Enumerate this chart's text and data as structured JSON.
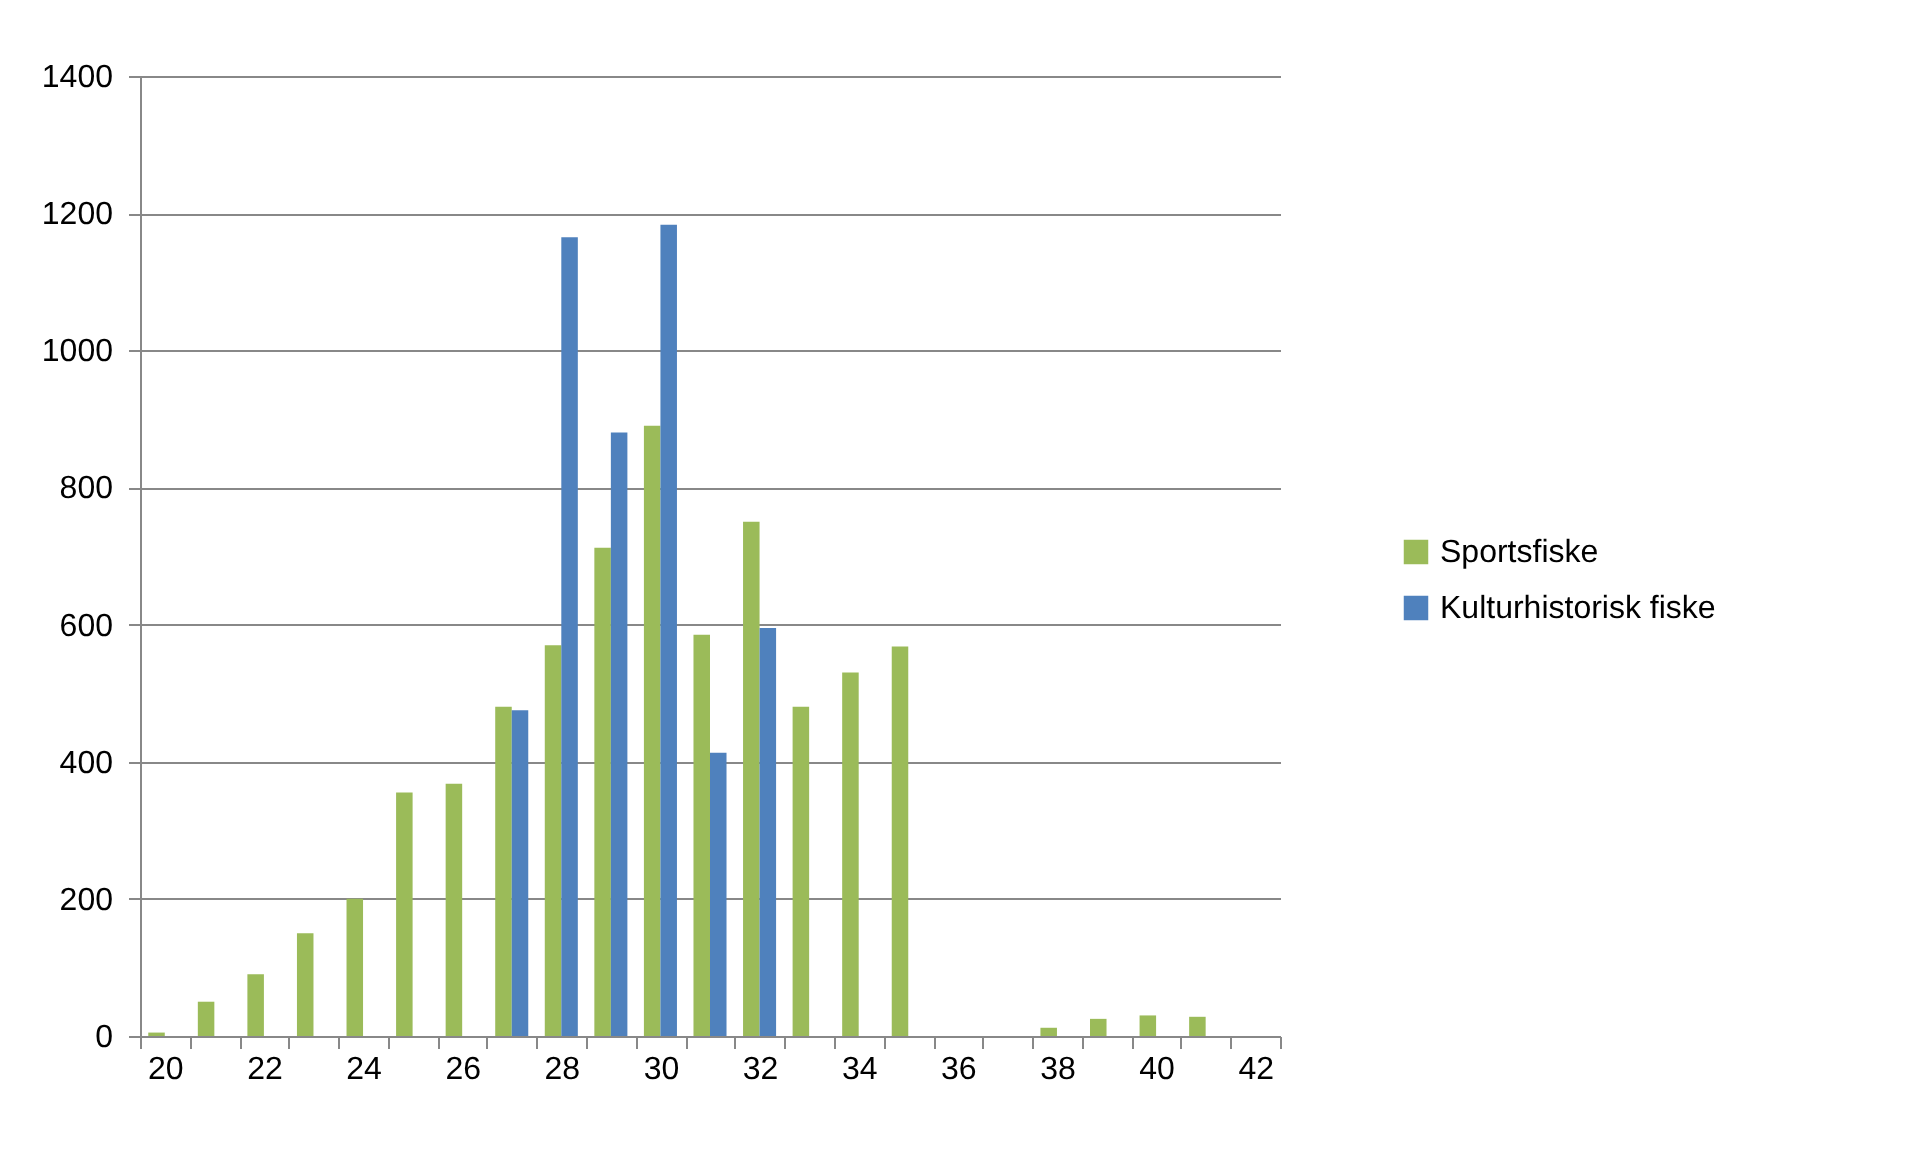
{
  "chart_data": {
    "type": "bar",
    "categories": [
      "20",
      null,
      "22",
      null,
      "24",
      null,
      "26",
      null,
      "28",
      null,
      "30",
      null,
      "32",
      null,
      "34",
      null,
      "36",
      null,
      "38",
      null,
      "40",
      null,
      "42"
    ],
    "series": [
      {
        "name": "Sportsfiske",
        "color": "#9bbb59",
        "values": [
          5,
          50,
          90,
          150,
          200,
          355,
          368,
          480,
          570,
          712,
          890,
          585,
          750,
          480,
          530,
          568,
          null,
          null,
          12,
          25,
          30,
          28,
          null
        ]
      },
      {
        "name": "Kulturhistorisk fiske",
        "color": "#4f81bd",
        "values": [
          null,
          null,
          null,
          null,
          null,
          null,
          null,
          475,
          1165,
          880,
          1183,
          413,
          595,
          null,
          null,
          null,
          null,
          null,
          null,
          null,
          null,
          null,
          null
        ]
      }
    ],
    "ylim": [
      0,
      1400
    ],
    "yticks": [
      0,
      200,
      400,
      600,
      800,
      1000,
      1200,
      1400
    ],
    "grid": "y",
    "legend": "right"
  }
}
